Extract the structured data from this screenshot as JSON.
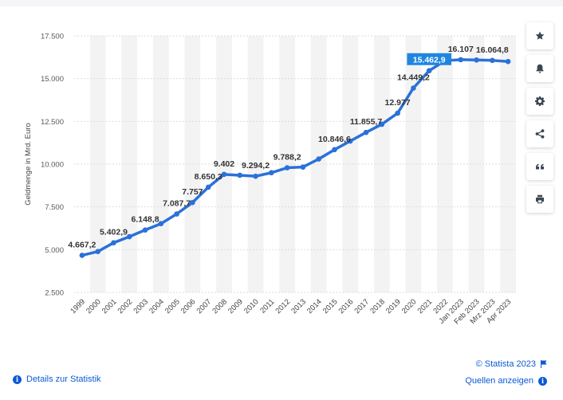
{
  "chart_data": {
    "type": "line",
    "ylabel": "Geldmenge in Mrd. Euro",
    "ylim": [
      2500,
      17500
    ],
    "y_ticks": [
      2500,
      5000,
      7500,
      10000,
      12500,
      15000,
      17500
    ],
    "y_tick_labels": [
      "2.500",
      "5.000",
      "7.500",
      "10.000",
      "12.500",
      "15.000",
      "17.500"
    ],
    "categories": [
      "1999",
      "2000",
      "2001",
      "2002",
      "2003",
      "2004",
      "2005",
      "2006",
      "2007",
      "2008",
      "2009",
      "2010",
      "2011",
      "2012",
      "2013",
      "2014",
      "2015",
      "2016",
      "2017",
      "2018",
      "2019",
      "2020",
      "2021",
      "2022",
      "Jan 2023",
      "Feb 2023",
      "Mrz 2023",
      "Apr 2023"
    ],
    "values": [
      4667.2,
      4890,
      5402.9,
      5760,
      6148.8,
      6520,
      7087.7,
      7757,
      8650.3,
      9402,
      9350,
      9294.2,
      9500,
      9788.2,
      9830,
      10300,
      10846.6,
      11350,
      11855.7,
      12330,
      12977,
      14449.2,
      15462.9,
      16050,
      16107,
      16090,
      16064.8,
      16000
    ],
    "data_labels": [
      {
        "index": 0,
        "text": "4.667,2"
      },
      {
        "index": 2,
        "text": "5.402,9"
      },
      {
        "index": 4,
        "text": "6.148,8"
      },
      {
        "index": 6,
        "text": "7.087,7"
      },
      {
        "index": 7,
        "text": "7.757"
      },
      {
        "index": 8,
        "text": "8.650,3"
      },
      {
        "index": 9,
        "text": "9.402"
      },
      {
        "index": 11,
        "text": "9.294,2"
      },
      {
        "index": 13,
        "text": "9.788,2"
      },
      {
        "index": 16,
        "text": "10.846,6"
      },
      {
        "index": 18,
        "text": "11.855,7"
      },
      {
        "index": 20,
        "text": "12.977"
      },
      {
        "index": 21,
        "text": "14.449,2"
      },
      {
        "index": 22,
        "text": "15.462,9",
        "highlighted": true
      },
      {
        "index": 24,
        "text": "16.107"
      },
      {
        "index": 26,
        "text": "16.064,8"
      }
    ],
    "line_color": "#2a71d9",
    "highlight_color": "#1f86e0",
    "grid": true
  },
  "toolbar": {
    "buttons": [
      {
        "name": "favorite-button",
        "icon": "star-icon"
      },
      {
        "name": "notification-button",
        "icon": "bell-icon"
      },
      {
        "name": "settings-button",
        "icon": "gear-icon"
      },
      {
        "name": "share-button",
        "icon": "share-icon"
      },
      {
        "name": "cite-button",
        "icon": "quote-icon"
      },
      {
        "name": "print-button",
        "icon": "printer-icon"
      }
    ]
  },
  "footer": {
    "details_label": "Details zur Statistik",
    "copyright": "© Statista 2023",
    "sources_label": "Quellen anzeigen"
  }
}
